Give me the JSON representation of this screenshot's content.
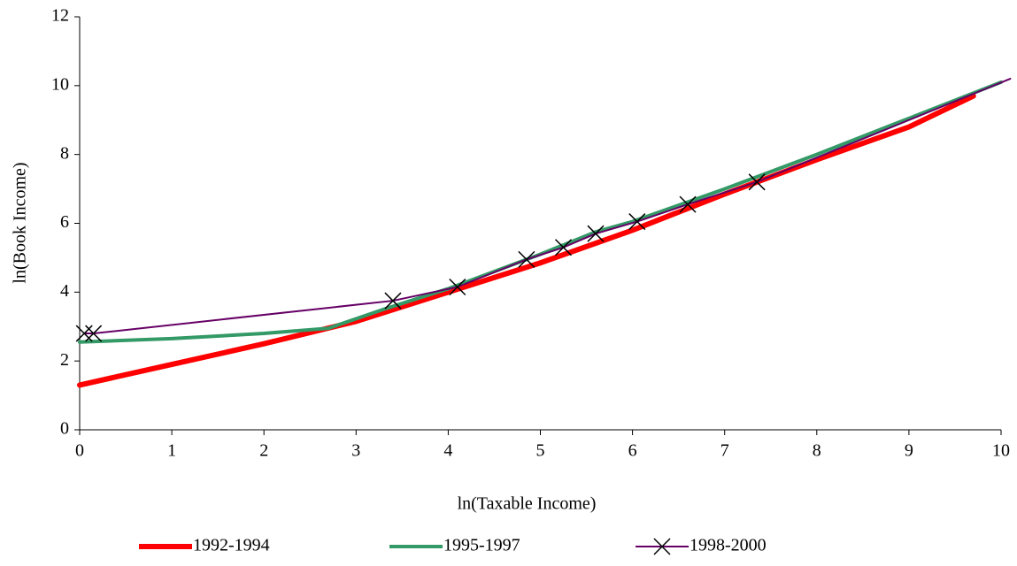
{
  "chart_data": {
    "type": "line",
    "xlabel": "ln(Taxable Income)",
    "ylabel": "ln(Book Income)",
    "xlim": [
      0,
      10
    ],
    "ylim": [
      0,
      12
    ],
    "xticks": [
      0,
      1,
      2,
      3,
      4,
      5,
      6,
      7,
      8,
      9,
      10
    ],
    "yticks": [
      0,
      2,
      4,
      6,
      8,
      10,
      12
    ],
    "grid": false,
    "legend": "bottom",
    "series": [
      {
        "name": "1992-1994",
        "color": "#ff0000",
        "width": 6,
        "marker": "none",
        "x": [
          0,
          1,
          2,
          3,
          4,
          5,
          6,
          7,
          8,
          9,
          9.7
        ],
        "values": [
          1.3,
          1.9,
          2.5,
          3.15,
          4.0,
          4.85,
          5.8,
          6.85,
          7.85,
          8.8,
          9.7
        ]
      },
      {
        "name": "1995-1997",
        "color": "#339966",
        "width": 4,
        "marker": "none",
        "x": [
          0,
          1,
          2,
          2.7,
          3.3,
          4.0,
          4.5,
          5.0,
          5.6,
          6.0,
          7.0,
          8.0,
          9.0,
          10.0
        ],
        "values": [
          2.55,
          2.65,
          2.8,
          2.95,
          3.5,
          4.1,
          4.6,
          5.1,
          5.75,
          6.05,
          7.0,
          8.0,
          9.05,
          10.1
        ]
      },
      {
        "name": "1998-2000",
        "color": "#660066",
        "width": 2,
        "marker": "x",
        "x": [
          0.05,
          0.15,
          3.4,
          4.1,
          4.85,
          5.25,
          5.6,
          6.05,
          6.6,
          7.35,
          10.1
        ],
        "values": [
          2.8,
          2.8,
          3.75,
          4.15,
          4.95,
          5.3,
          5.7,
          6.05,
          6.55,
          7.2,
          10.2
        ]
      }
    ]
  }
}
